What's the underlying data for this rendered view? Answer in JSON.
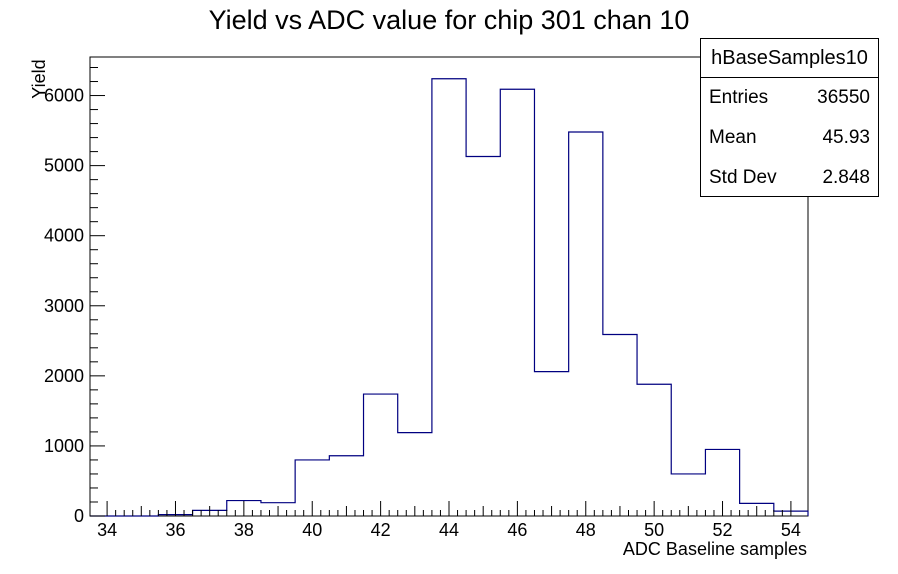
{
  "chart_data": {
    "type": "bar",
    "title": "Yield vs ADC value for chip 301 chan 10",
    "xlabel": "ADC Baseline samples",
    "ylabel": "Yield",
    "xlim": [
      33.5,
      54.5
    ],
    "ylim": [
      0,
      6550
    ],
    "xticks": [
      "34",
      "36",
      "38",
      "40",
      "42",
      "44",
      "46",
      "48",
      "50",
      "52",
      "54"
    ],
    "yticks": [
      "0",
      "1000",
      "2000",
      "3000",
      "4000",
      "5000",
      "6000"
    ],
    "bin_width": 1,
    "bins": [
      {
        "center": 34,
        "value": 0
      },
      {
        "center": 35,
        "value": 0
      },
      {
        "center": 36,
        "value": 20
      },
      {
        "center": 37,
        "value": 80
      },
      {
        "center": 38,
        "value": 220
      },
      {
        "center": 39,
        "value": 190
      },
      {
        "center": 40,
        "value": 800
      },
      {
        "center": 41,
        "value": 860
      },
      {
        "center": 42,
        "value": 1740
      },
      {
        "center": 43,
        "value": 1190
      },
      {
        "center": 44,
        "value": 6240
      },
      {
        "center": 45,
        "value": 5130
      },
      {
        "center": 46,
        "value": 6090
      },
      {
        "center": 47,
        "value": 2060
      },
      {
        "center": 48,
        "value": 5480
      },
      {
        "center": 49,
        "value": 2590
      },
      {
        "center": 50,
        "value": 1880
      },
      {
        "center": 51,
        "value": 600
      },
      {
        "center": 52,
        "value": 950
      },
      {
        "center": 53,
        "value": 180
      },
      {
        "center": 54,
        "value": 70
      }
    ],
    "line_color": "#000080",
    "stats": {
      "name": "hBaseSamples10",
      "rows": [
        {
          "label": "Entries",
          "value": "36550"
        },
        {
          "label": "Mean",
          "value": "45.93"
        },
        {
          "label": "Std Dev",
          "value": "2.848"
        }
      ]
    }
  }
}
